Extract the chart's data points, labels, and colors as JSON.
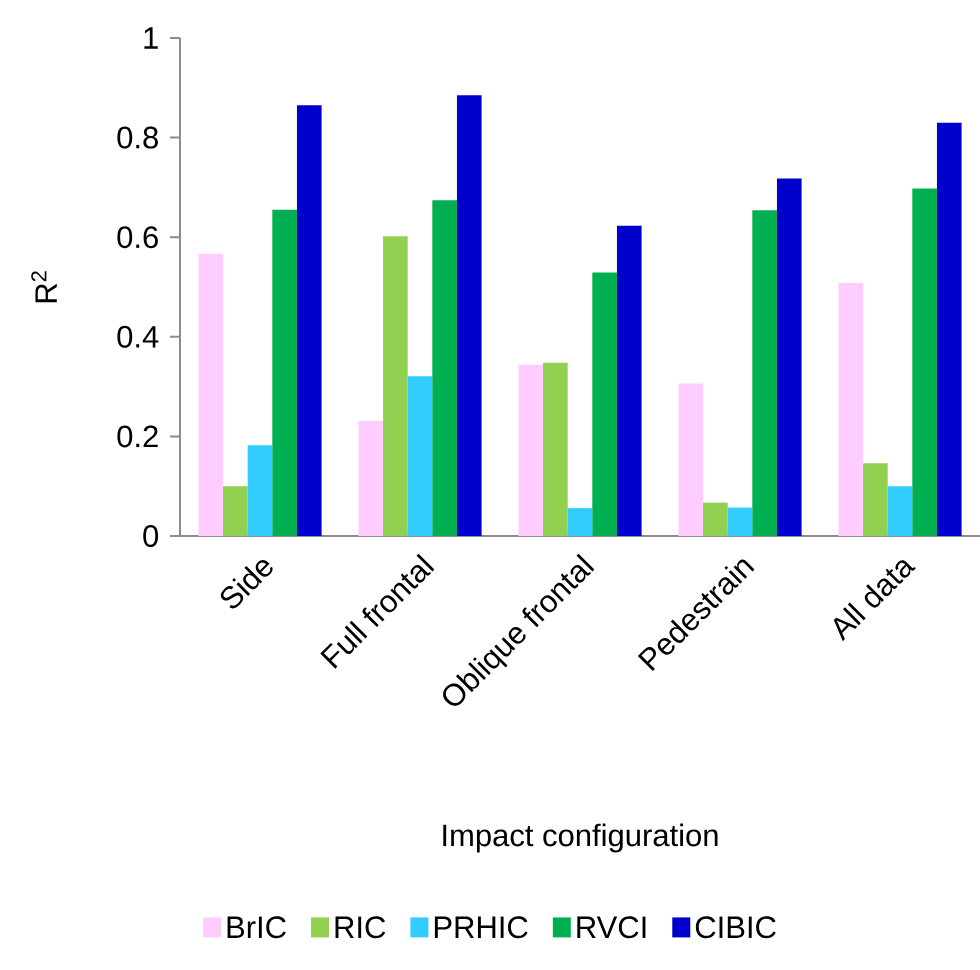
{
  "chart_data": {
    "type": "bar",
    "xlabel": "Impact configuration",
    "ylabel": "R$^{2}$",
    "categories": [
      "Side",
      "Full frontal",
      "Oblique frontal",
      "Pedestrain",
      "All data"
    ],
    "series": [
      {
        "name": "BrIC",
        "color": "#ffccff",
        "values": [
          0.567,
          0.231,
          0.344,
          0.306,
          0.508
        ]
      },
      {
        "name": "RIC",
        "color": "#92d050",
        "values": [
          0.1,
          0.602,
          0.348,
          0.067,
          0.146
        ]
      },
      {
        "name": "PRHIC",
        "color": "#33ccff",
        "values": [
          0.182,
          0.321,
          0.056,
          0.057,
          0.1
        ]
      },
      {
        "name": "RVCI",
        "color": "#00b050",
        "values": [
          0.655,
          0.674,
          0.529,
          0.654,
          0.698
        ]
      },
      {
        "name": "CIBIC",
        "color": "#0000cc",
        "values": [
          0.865,
          0.885,
          0.623,
          0.718,
          0.83
        ]
      }
    ],
    "ylim": [
      0,
      1
    ],
    "yticks": [
      0,
      0.2,
      0.4,
      0.6,
      0.8,
      1
    ],
    "grid": false,
    "legend": "bottom"
  }
}
